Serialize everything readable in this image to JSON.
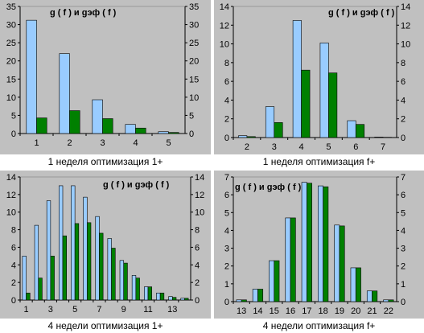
{
  "colors": {
    "panel_bg": "#c0c0c0",
    "plot_bg": "#c0c0c0",
    "series_g": "#99ccff",
    "series_gef": "#008000",
    "axis": "#000000",
    "caption_bg": "#ffffff"
  },
  "chart_data": [
    {
      "type": "bar",
      "title": "",
      "annotation": "g ( f ) и gэф ( f )",
      "caption": "1 неделя оптимизация 1+",
      "categories": [
        "1",
        "2",
        "3",
        "4",
        "5"
      ],
      "ylim": [
        0,
        35
      ],
      "yticks": [
        0,
        5,
        10,
        15,
        20,
        25,
        30,
        35
      ],
      "series": [
        {
          "values": [
            31.2,
            22.0,
            9.3,
            2.5,
            0.5
          ]
        },
        {
          "values": [
            4.3,
            6.3,
            4.1,
            1.5,
            0.3
          ]
        }
      ]
    },
    {
      "type": "bar",
      "title": "",
      "annotation": "g ( f ) и gэф ( f )",
      "caption": "1 неделя оптимизация f+",
      "categories": [
        "2",
        "3",
        "4",
        "5",
        "6",
        "7"
      ],
      "ylim": [
        0,
        14
      ],
      "yticks": [
        0,
        2,
        4,
        6,
        8,
        10,
        12,
        14
      ],
      "series": [
        {
          "values": [
            0.2,
            3.3,
            12.5,
            10.1,
            1.8,
            0.05
          ]
        },
        {
          "values": [
            0.1,
            1.6,
            7.2,
            6.9,
            1.4,
            0.03
          ]
        }
      ]
    },
    {
      "type": "bar",
      "title": "",
      "annotation": "g ( f ) и gэф ( f )",
      "caption": "4 недели оптимизация 1+",
      "categories": [
        "1",
        "2",
        "3",
        "4",
        "5",
        "6",
        "7",
        "8",
        "9",
        "10",
        "11",
        "12",
        "13",
        "14"
      ],
      "xtick_labels": [
        "1",
        "",
        "3",
        "",
        "5",
        "",
        "7",
        "",
        "9",
        "",
        "11",
        "",
        "13",
        ""
      ],
      "ylim": [
        0,
        14
      ],
      "yticks": [
        0,
        2,
        4,
        6,
        8,
        10,
        12,
        14
      ],
      "series": [
        {
          "values": [
            5.0,
            8.5,
            11.3,
            13.0,
            13.0,
            11.7,
            9.5,
            7.0,
            4.5,
            2.8,
            1.5,
            0.8,
            0.4,
            0.2
          ]
        },
        {
          "values": [
            0.8,
            2.5,
            5.0,
            7.3,
            8.7,
            8.8,
            7.6,
            5.9,
            4.2,
            2.5,
            1.5,
            0.8,
            0.3,
            0.2
          ]
        }
      ]
    },
    {
      "type": "bar",
      "title": "",
      "annotation": "g ( f ) и gэф ( f )",
      "caption": "4 недели оптимизация f+",
      "categories": [
        "13",
        "14",
        "15",
        "16",
        "17",
        "18",
        "19",
        "20",
        "21",
        "22"
      ],
      "ylim": [
        0,
        7
      ],
      "yticks": [
        0,
        1,
        2,
        3,
        4,
        5,
        6,
        7
      ],
      "series": [
        {
          "values": [
            0.1,
            0.7,
            2.3,
            4.7,
            6.7,
            6.5,
            4.3,
            1.9,
            0.6,
            0.1
          ]
        },
        {
          "values": [
            0.1,
            0.7,
            2.3,
            4.7,
            6.65,
            6.45,
            4.25,
            1.9,
            0.6,
            0.1
          ]
        }
      ]
    }
  ]
}
